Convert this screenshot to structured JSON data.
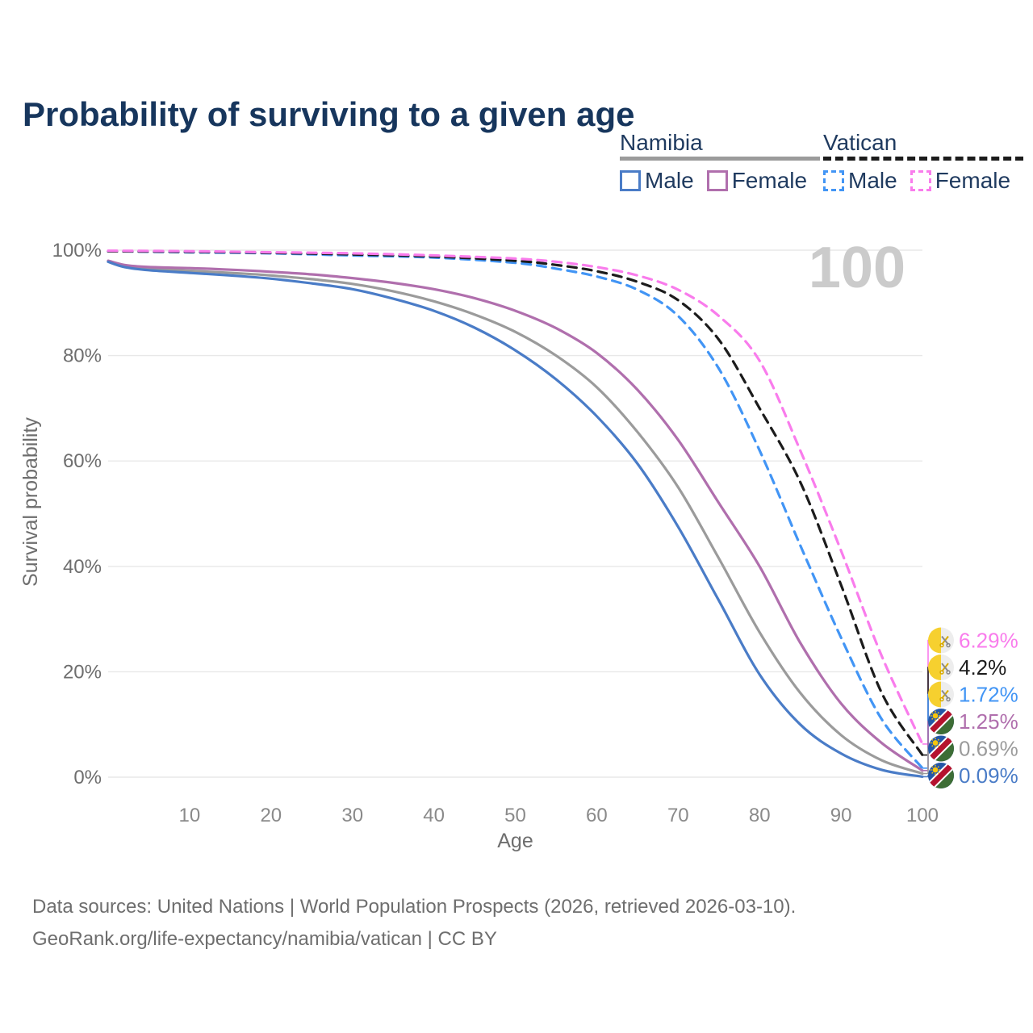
{
  "title": "Probability of surviving to a given age",
  "watermark": "100",
  "legend": {
    "groups": [
      {
        "title": "Namibia",
        "underline_color": "#9b9b9b",
        "underline_dashed": false,
        "items": [
          {
            "label": "Male",
            "color": "#4a7cc7",
            "dashed": false
          },
          {
            "label": "Female",
            "color": "#b06fad",
            "dashed": false
          }
        ]
      },
      {
        "title": "Vatican",
        "underline_color": "#1c1c1c",
        "underline_dashed": true,
        "items": [
          {
            "label": "Male",
            "color": "#4295f5",
            "dashed": true
          },
          {
            "label": "Female",
            "color": "#f97cec",
            "dashed": true
          }
        ]
      }
    ]
  },
  "chart_data": {
    "type": "line",
    "title": "Probability of surviving to a given age",
    "xlabel": "Age",
    "ylabel": "Survival probability",
    "xlim": [
      0,
      100
    ],
    "ylim": [
      0,
      100
    ],
    "grid": true,
    "legend_position": "top-right",
    "xticks": [
      10,
      20,
      30,
      40,
      50,
      60,
      70,
      80,
      90,
      100
    ],
    "yticks": [
      {
        "value": 0,
        "label": "0%"
      },
      {
        "value": 20,
        "label": "20%"
      },
      {
        "value": 40,
        "label": "40%"
      },
      {
        "value": 60,
        "label": "60%"
      },
      {
        "value": 80,
        "label": "80%"
      },
      {
        "value": 100,
        "label": "100%"
      }
    ],
    "series": [
      {
        "name": "Namibia Total",
        "country": "namibia",
        "color": "#9b9b9b",
        "dashed": false,
        "end_label": "0.69%",
        "rank": 4,
        "points": [
          [
            0,
            97.9
          ],
          [
            2,
            97.0
          ],
          [
            5,
            96.5
          ],
          [
            10,
            96.1
          ],
          [
            15,
            95.7
          ],
          [
            20,
            95.2
          ],
          [
            25,
            94.5
          ],
          [
            30,
            93.6
          ],
          [
            35,
            92.2
          ],
          [
            40,
            90.3
          ],
          [
            45,
            87.8
          ],
          [
            50,
            84.5
          ],
          [
            55,
            80.0
          ],
          [
            60,
            74.0
          ],
          [
            65,
            65.5
          ],
          [
            70,
            55.0
          ],
          [
            75,
            41.5
          ],
          [
            80,
            27.5
          ],
          [
            85,
            16.0
          ],
          [
            90,
            8.0
          ],
          [
            95,
            3.2
          ],
          [
            100,
            0.69
          ]
        ]
      },
      {
        "name": "Namibia Female",
        "country": "namibia",
        "color": "#b06fad",
        "dashed": false,
        "end_label": "1.25%",
        "rank": 3,
        "points": [
          [
            0,
            98.0
          ],
          [
            2,
            97.2
          ],
          [
            5,
            96.8
          ],
          [
            10,
            96.6
          ],
          [
            15,
            96.3
          ],
          [
            20,
            95.9
          ],
          [
            25,
            95.4
          ],
          [
            30,
            94.7
          ],
          [
            35,
            93.8
          ],
          [
            40,
            92.6
          ],
          [
            45,
            90.9
          ],
          [
            50,
            88.5
          ],
          [
            55,
            85.2
          ],
          [
            60,
            80.5
          ],
          [
            65,
            73.5
          ],
          [
            70,
            64.0
          ],
          [
            75,
            52.0
          ],
          [
            80,
            40.0
          ],
          [
            85,
            25.5
          ],
          [
            90,
            14.0
          ],
          [
            95,
            6.5
          ],
          [
            100,
            1.25
          ]
        ]
      },
      {
        "name": "Namibia Male",
        "country": "namibia",
        "color": "#4a7cc7",
        "dashed": false,
        "end_label": "0.09%",
        "rank": 5,
        "points": [
          [
            0,
            97.8
          ],
          [
            2,
            96.8
          ],
          [
            5,
            96.2
          ],
          [
            10,
            95.7
          ],
          [
            15,
            95.2
          ],
          [
            20,
            94.6
          ],
          [
            25,
            93.7
          ],
          [
            30,
            92.6
          ],
          [
            35,
            90.8
          ],
          [
            40,
            88.5
          ],
          [
            45,
            85.3
          ],
          [
            50,
            81.0
          ],
          [
            55,
            75.5
          ],
          [
            60,
            68.5
          ],
          [
            65,
            59.5
          ],
          [
            70,
            47.5
          ],
          [
            75,
            33.5
          ],
          [
            80,
            19.5
          ],
          [
            85,
            10.0
          ],
          [
            90,
            4.5
          ],
          [
            95,
            1.4
          ],
          [
            100,
            0.09
          ]
        ]
      },
      {
        "name": "Vatican Male",
        "country": "vatican",
        "color": "#4295f5",
        "dashed": true,
        "end_label": "1.72%",
        "rank": 2,
        "points": [
          [
            0,
            99.8
          ],
          [
            10,
            99.6
          ],
          [
            20,
            99.4
          ],
          [
            30,
            99.0
          ],
          [
            40,
            98.6
          ],
          [
            50,
            97.6
          ],
          [
            55,
            96.5
          ],
          [
            60,
            95.0
          ],
          [
            65,
            92.5
          ],
          [
            70,
            87.5
          ],
          [
            75,
            77.5
          ],
          [
            80,
            62.0
          ],
          [
            85,
            44.0
          ],
          [
            90,
            26.5
          ],
          [
            95,
            11.0
          ],
          [
            100,
            1.72
          ]
        ]
      },
      {
        "name": "Vatican Total",
        "country": "vatican",
        "color": "#1c1c1c",
        "dashed": true,
        "end_label": "4.2%",
        "rank": 1,
        "points": [
          [
            0,
            99.8
          ],
          [
            10,
            99.7
          ],
          [
            20,
            99.5
          ],
          [
            30,
            99.2
          ],
          [
            40,
            98.8
          ],
          [
            50,
            98.0
          ],
          [
            55,
            97.2
          ],
          [
            60,
            96.0
          ],
          [
            65,
            94.0
          ],
          [
            70,
            90.5
          ],
          [
            75,
            83.0
          ],
          [
            80,
            70.0
          ],
          [
            85,
            56.0
          ],
          [
            90,
            36.5
          ],
          [
            95,
            16.0
          ],
          [
            100,
            4.2
          ]
        ]
      },
      {
        "name": "Vatican Female",
        "country": "vatican",
        "color": "#f97cec",
        "dashed": true,
        "end_label": "6.29%",
        "rank": 0,
        "points": [
          [
            0,
            99.9
          ],
          [
            10,
            99.8
          ],
          [
            20,
            99.6
          ],
          [
            30,
            99.4
          ],
          [
            40,
            99.0
          ],
          [
            50,
            98.4
          ],
          [
            55,
            97.8
          ],
          [
            60,
            96.8
          ],
          [
            65,
            95.2
          ],
          [
            70,
            92.5
          ],
          [
            75,
            87.5
          ],
          [
            80,
            79.0
          ],
          [
            85,
            62.0
          ],
          [
            90,
            43.0
          ],
          [
            95,
            23.0
          ],
          [
            100,
            6.29
          ]
        ]
      }
    ]
  },
  "footer": {
    "line1": "Data sources: United Nations | World Population Prospects (2026, retrieved 2026-03-10).",
    "line2": "GeoRank.org/life-expectancy/namibia/vatican | CC BY"
  }
}
